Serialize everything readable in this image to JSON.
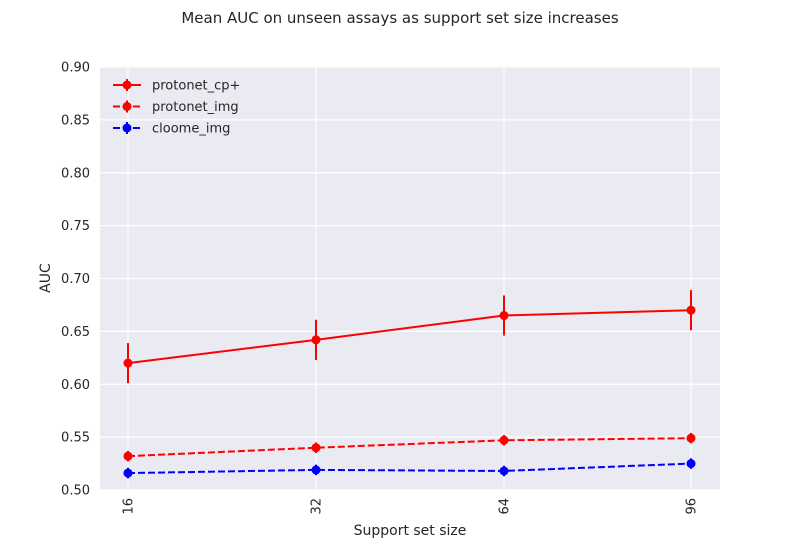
{
  "chart_data": {
    "type": "line",
    "title": "Mean AUC on unseen assays as support set size increases",
    "xlabel": "Support set size",
    "ylabel": "AUC",
    "categories": [
      "16",
      "32",
      "64",
      "96"
    ],
    "ylim": [
      0.5,
      0.9
    ],
    "yticks": [
      "0.50",
      "0.55",
      "0.60",
      "0.65",
      "0.70",
      "0.75",
      "0.80",
      "0.85",
      "0.90"
    ],
    "grid": true,
    "legend_position": "top-left",
    "series": [
      {
        "name": "protonet_cp+",
        "values": [
          0.62,
          0.642,
          0.665,
          0.67
        ],
        "errors": [
          0.019,
          0.019,
          0.019,
          0.019
        ],
        "color": "#ff0000",
        "linestyle": "solid"
      },
      {
        "name": "protonet_img",
        "values": [
          0.532,
          0.54,
          0.547,
          0.549
        ],
        "errors": [
          0.005,
          0.005,
          0.005,
          0.005
        ],
        "color": "#ff0000",
        "linestyle": "dashed"
      },
      {
        "name": "cloome_img",
        "values": [
          0.516,
          0.519,
          0.518,
          0.525
        ],
        "errors": [
          0.005,
          0.005,
          0.005,
          0.005
        ],
        "color": "#0000ff",
        "linestyle": "dashed"
      }
    ]
  }
}
